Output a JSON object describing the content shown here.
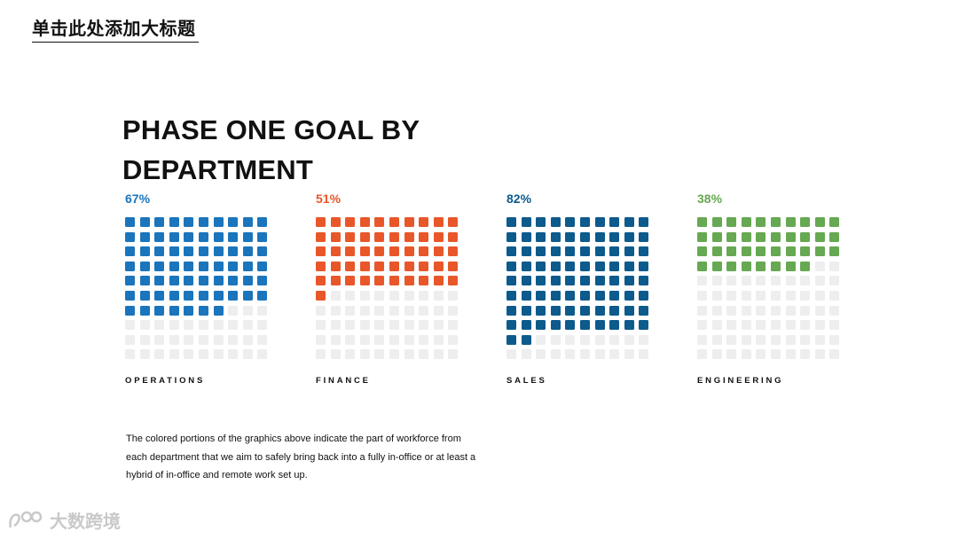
{
  "slide_title": "单击此处添加大标题",
  "heading_lines": [
    "PHASE ONE GOAL BY",
    "DEPARTMENT"
  ],
  "chart_data": {
    "type": "waffle",
    "grid": {
      "rows": 10,
      "cols": 10
    },
    "empty_color": "#eeeeee",
    "series": [
      {
        "name": "OPERATIONS",
        "value": 67,
        "label": "67%",
        "color": "#1a75bc"
      },
      {
        "name": "FINANCE",
        "value": 51,
        "label": "51%",
        "color": "#e8572a"
      },
      {
        "name": "SALES",
        "value": 82,
        "label": "82%",
        "color": "#0d5a8c"
      },
      {
        "name": "ENGINEERING",
        "value": 38,
        "label": "38%",
        "color": "#67a852"
      }
    ]
  },
  "note_text": "The colored portions of the graphics above indicate the part of workforce from each department that we aim to safely bring back into a fully in-office or at least a hybrid of in-office and remote work set up.",
  "watermark": {
    "text": "大数跨境",
    "icon": "brand-logo-icon"
  }
}
